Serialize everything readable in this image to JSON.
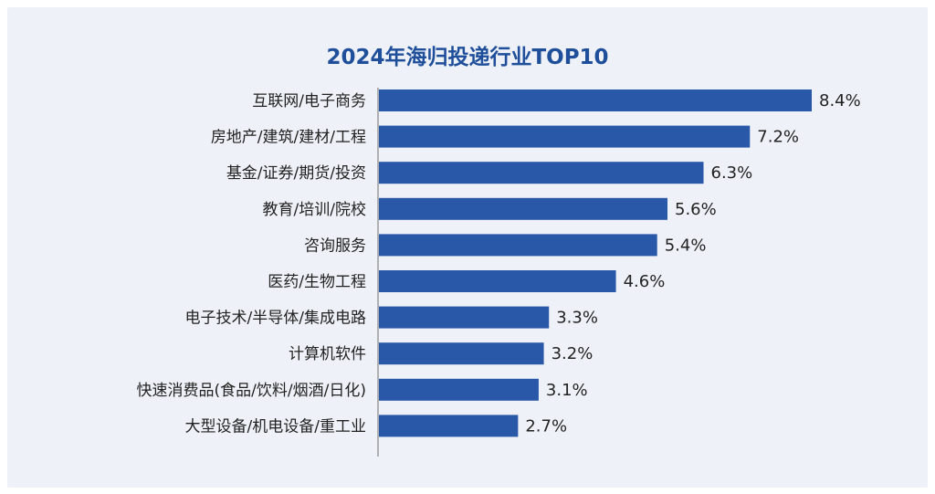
{
  "chart_data": {
    "type": "bar",
    "orientation": "horizontal",
    "title": "2024年海归投递行业TOP10",
    "categories": [
      "互联网/电子商务",
      "房地产/建筑/建材/工程",
      "基金/证券/期货/投资",
      "教育/培训/院校",
      "咨询服务",
      "医药/生物工程",
      "电子技术/半导体/集成电路",
      "计算机软件",
      "快速消费品(食品/饮料/烟酒/日化)",
      "大型设备/机电设备/重工业"
    ],
    "values": [
      8.4,
      7.2,
      6.3,
      5.6,
      5.4,
      4.6,
      3.3,
      3.2,
      3.1,
      2.7
    ],
    "value_labels": [
      "8.4%",
      "7.2%",
      "6.3%",
      "5.6%",
      "5.4%",
      "4.6%",
      "3.3%",
      "3.2%",
      "3.1%",
      "2.7%"
    ],
    "unit": "%",
    "xlim": [
      0,
      8.4
    ],
    "grid": false,
    "legend": "none",
    "colors": {
      "bar": "#2a58a8",
      "title": "#1f4f9a",
      "background": "#eef1f7",
      "axis": "#9a9a9a"
    }
  }
}
